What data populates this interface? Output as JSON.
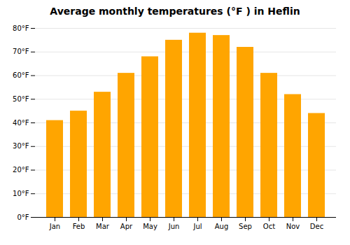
{
  "chart_data": {
    "type": "bar",
    "title": "Average monthly temperatures (°F ) in Heflin",
    "categories": [
      "Jan",
      "Feb",
      "Mar",
      "Apr",
      "May",
      "Jun",
      "Jul",
      "Aug",
      "Sep",
      "Oct",
      "Nov",
      "Dec"
    ],
    "values": [
      41,
      45,
      53,
      61,
      68,
      75,
      78,
      77,
      72,
      61,
      52,
      44
    ],
    "color": "#FFA500",
    "ylim": [
      0,
      80
    ],
    "yticks": [
      {
        "value": 0,
        "label": "0°F"
      },
      {
        "value": 10,
        "label": "10°F"
      },
      {
        "value": 20,
        "label": "20°F"
      },
      {
        "value": 30,
        "label": "30°F"
      },
      {
        "value": 40,
        "label": "40°F"
      },
      {
        "value": 50,
        "label": "50°F"
      },
      {
        "value": 60,
        "label": "60°F"
      },
      {
        "value": 70,
        "label": "70°F"
      },
      {
        "value": 80,
        "label": "80°F"
      }
    ],
    "grid": true
  }
}
